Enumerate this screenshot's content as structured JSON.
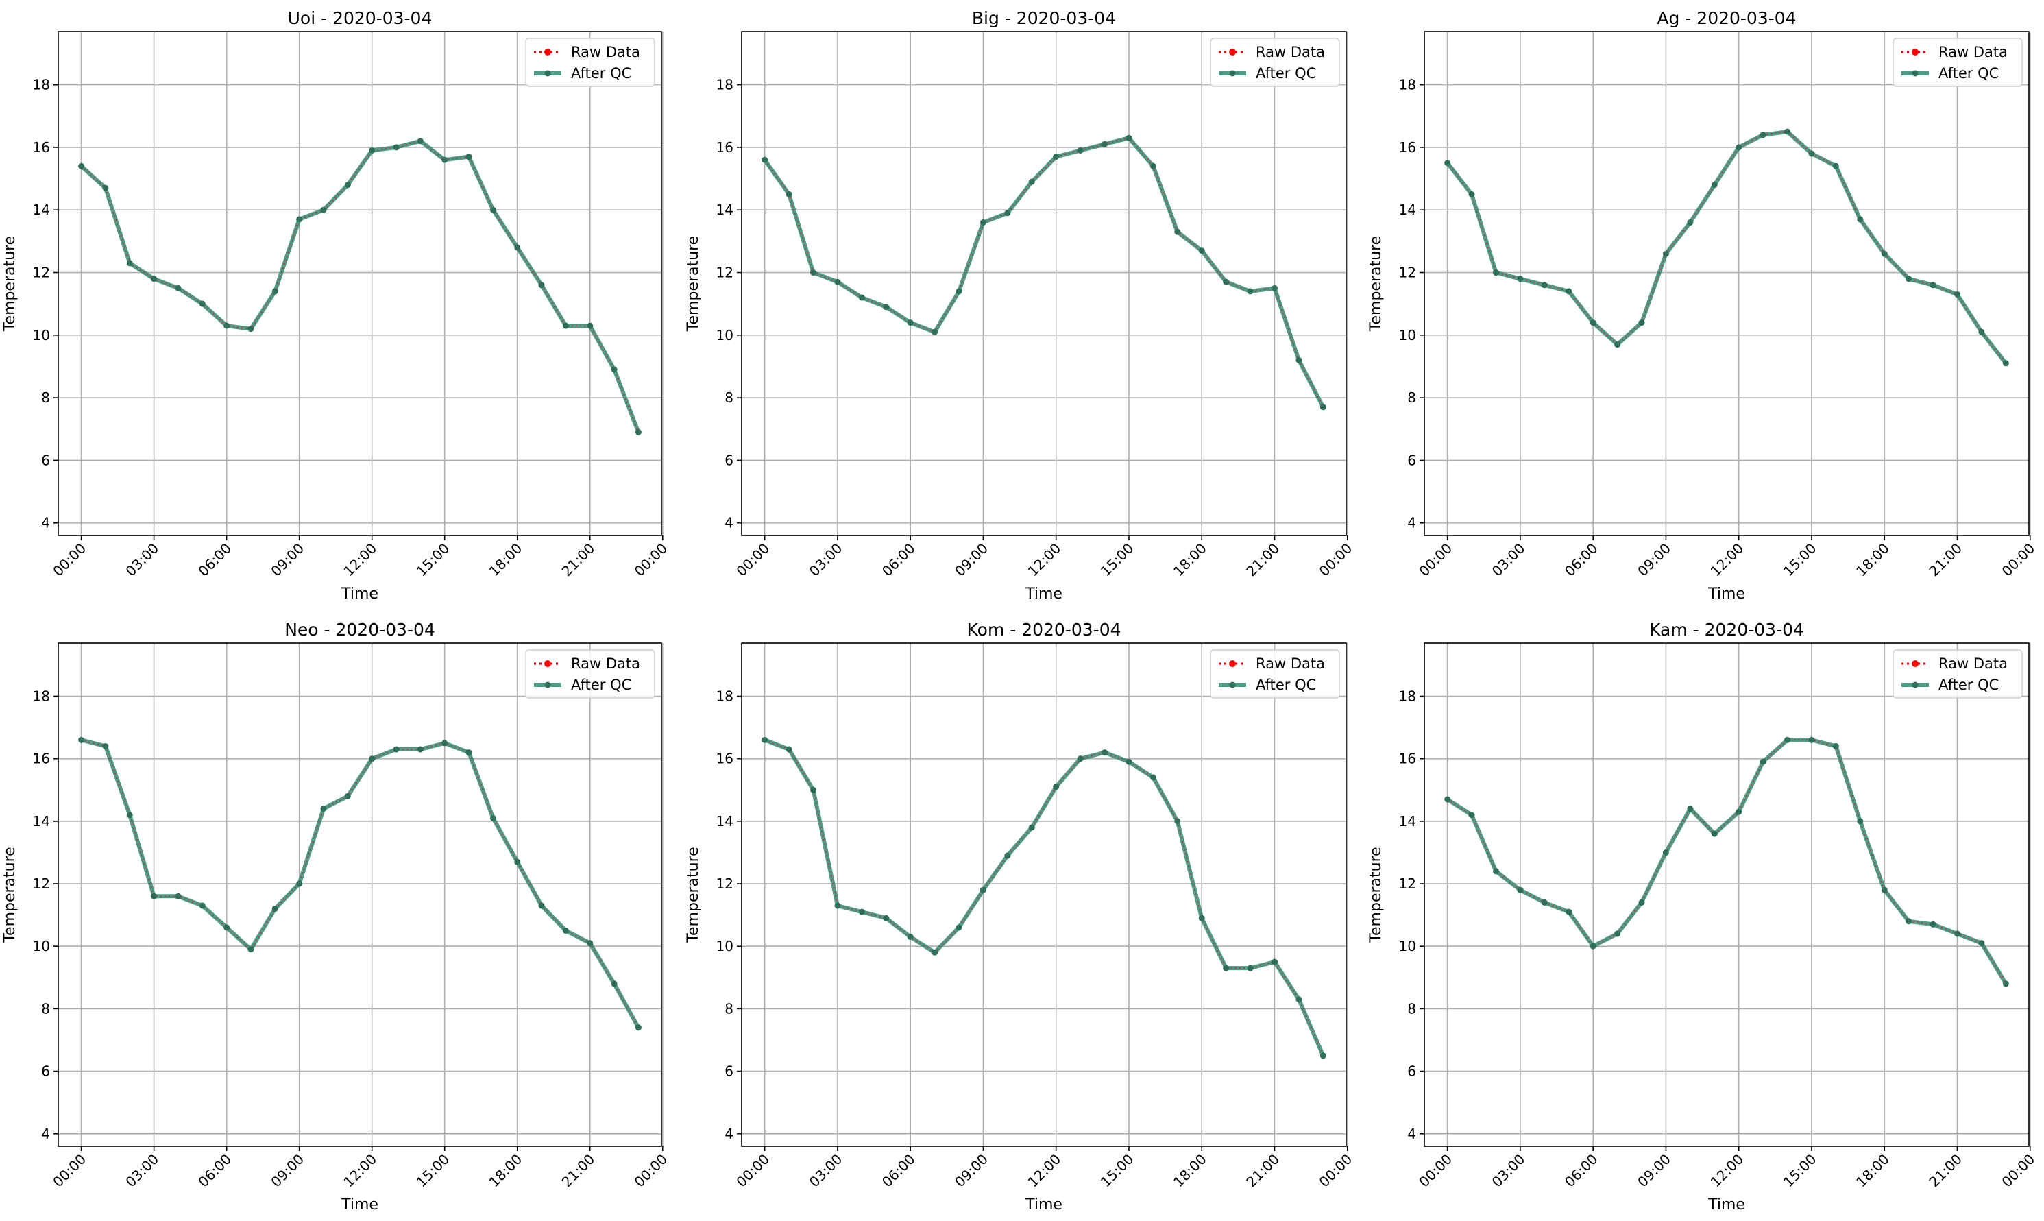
{
  "figure": {
    "background": "#ffffff"
  },
  "style": {
    "raw_color": "#ff0000",
    "qc_color": "#2e8b72",
    "qc_marker_color": "#2f6f5a",
    "grid_color": "#b0b0b0"
  },
  "legend": {
    "placement": "top-right",
    "entries": [
      "Raw Data",
      "After QC"
    ]
  },
  "chart_data": [
    {
      "type": "line",
      "title": "Uoi - 2020-03-04",
      "xlabel": "Time",
      "ylabel": "Temperature",
      "ylim": [
        3.6,
        19.7
      ],
      "yticks": [
        4,
        6,
        8,
        10,
        12,
        14,
        16,
        18
      ],
      "xlim": [
        -0.95,
        23.95
      ],
      "xticks": [
        0,
        3,
        6,
        9,
        12,
        15,
        18,
        21,
        24
      ],
      "xticklabels": [
        "00:00",
        "03:00",
        "06:00",
        "09:00",
        "12:00",
        "15:00",
        "18:00",
        "21:00",
        "00:00"
      ],
      "grid": true,
      "x": [
        0,
        1,
        2,
        3,
        4,
        5,
        6,
        7,
        8,
        9,
        10,
        11,
        12,
        13,
        14,
        15,
        16,
        17,
        18,
        19,
        20,
        21,
        22,
        23
      ],
      "series": [
        {
          "name": "Raw Data",
          "values": [
            15.4,
            14.7,
            12.3,
            11.8,
            11.5,
            11.0,
            10.3,
            10.2,
            11.4,
            13.7,
            14.0,
            14.8,
            15.9,
            16.0,
            16.2,
            15.6,
            15.7,
            14.0,
            12.8,
            11.6,
            10.3,
            10.3,
            8.9,
            6.9
          ]
        },
        {
          "name": "After QC",
          "values": [
            15.4,
            14.7,
            12.3,
            11.8,
            11.5,
            11.0,
            10.3,
            10.2,
            11.4,
            13.7,
            14.0,
            14.8,
            15.9,
            16.0,
            16.2,
            15.6,
            15.7,
            14.0,
            12.8,
            11.6,
            10.3,
            10.3,
            8.9,
            6.9
          ]
        }
      ]
    },
    {
      "type": "line",
      "title": "Big - 2020-03-04",
      "xlabel": "Time",
      "ylabel": "Temperature",
      "ylim": [
        3.6,
        19.7
      ],
      "yticks": [
        4,
        6,
        8,
        10,
        12,
        14,
        16,
        18
      ],
      "xlim": [
        -0.95,
        23.95
      ],
      "xticks": [
        0,
        3,
        6,
        9,
        12,
        15,
        18,
        21,
        24
      ],
      "xticklabels": [
        "00:00",
        "03:00",
        "06:00",
        "09:00",
        "12:00",
        "15:00",
        "18:00",
        "21:00",
        "00:00"
      ],
      "grid": true,
      "x": [
        0,
        1,
        2,
        3,
        4,
        5,
        6,
        7,
        8,
        9,
        10,
        11,
        12,
        13,
        14,
        15,
        16,
        17,
        18,
        19,
        20,
        21,
        22,
        23
      ],
      "series": [
        {
          "name": "Raw Data",
          "values": [
            15.6,
            14.5,
            12.0,
            11.7,
            11.2,
            10.9,
            10.4,
            10.1,
            11.4,
            13.6,
            13.9,
            14.9,
            15.7,
            15.9,
            16.1,
            16.3,
            15.4,
            13.3,
            12.7,
            11.7,
            11.4,
            11.5,
            9.2,
            7.7
          ]
        },
        {
          "name": "After QC",
          "values": [
            15.6,
            14.5,
            12.0,
            11.7,
            11.2,
            10.9,
            10.4,
            10.1,
            11.4,
            13.6,
            13.9,
            14.9,
            15.7,
            15.9,
            16.1,
            16.3,
            15.4,
            13.3,
            12.7,
            11.7,
            11.4,
            11.5,
            9.2,
            7.7
          ]
        }
      ]
    },
    {
      "type": "line",
      "title": "Ag - 2020-03-04",
      "xlabel": "Time",
      "ylabel": "Temperature",
      "ylim": [
        3.6,
        19.7
      ],
      "yticks": [
        4,
        6,
        8,
        10,
        12,
        14,
        16,
        18
      ],
      "xlim": [
        -0.95,
        23.95
      ],
      "xticks": [
        0,
        3,
        6,
        9,
        12,
        15,
        18,
        21,
        24
      ],
      "xticklabels": [
        "00:00",
        "03:00",
        "06:00",
        "09:00",
        "12:00",
        "15:00",
        "18:00",
        "21:00",
        "00:00"
      ],
      "grid": true,
      "x": [
        0,
        1,
        2,
        3,
        4,
        5,
        6,
        7,
        8,
        9,
        10,
        11,
        12,
        13,
        14,
        15,
        16,
        17,
        18,
        19,
        20,
        21,
        22,
        23
      ],
      "series": [
        {
          "name": "Raw Data",
          "values": [
            15.5,
            14.5,
            12.0,
            11.8,
            11.6,
            11.4,
            10.4,
            9.7,
            10.4,
            12.6,
            13.6,
            14.8,
            16.0,
            16.4,
            16.5,
            15.8,
            15.4,
            13.7,
            12.6,
            11.8,
            11.6,
            11.3,
            10.1,
            9.1
          ]
        },
        {
          "name": "After QC",
          "values": [
            15.5,
            14.5,
            12.0,
            11.8,
            11.6,
            11.4,
            10.4,
            9.7,
            10.4,
            12.6,
            13.6,
            14.8,
            16.0,
            16.4,
            16.5,
            15.8,
            15.4,
            13.7,
            12.6,
            11.8,
            11.6,
            11.3,
            10.1,
            9.1
          ]
        }
      ]
    },
    {
      "type": "line",
      "title": "Neo - 2020-03-04",
      "xlabel": "Time",
      "ylabel": "Temperature",
      "ylim": [
        3.6,
        19.7
      ],
      "yticks": [
        4,
        6,
        8,
        10,
        12,
        14,
        16,
        18
      ],
      "xlim": [
        -0.95,
        23.95
      ],
      "xticks": [
        0,
        3,
        6,
        9,
        12,
        15,
        18,
        21,
        24
      ],
      "xticklabels": [
        "00:00",
        "03:00",
        "06:00",
        "09:00",
        "12:00",
        "15:00",
        "18:00",
        "21:00",
        "00:00"
      ],
      "grid": true,
      "x": [
        0,
        1,
        2,
        3,
        4,
        5,
        6,
        7,
        8,
        9,
        10,
        11,
        12,
        13,
        14,
        15,
        16,
        17,
        18,
        19,
        20,
        21,
        22,
        23
      ],
      "series": [
        {
          "name": "Raw Data",
          "values": [
            16.6,
            16.4,
            14.2,
            11.6,
            11.6,
            11.3,
            10.6,
            9.9,
            11.2,
            12.0,
            14.4,
            14.8,
            16.0,
            16.3,
            16.3,
            16.5,
            16.2,
            14.1,
            12.7,
            11.3,
            10.5,
            10.1,
            8.8,
            7.4
          ]
        },
        {
          "name": "After QC",
          "values": [
            16.6,
            16.4,
            14.2,
            11.6,
            11.6,
            11.3,
            10.6,
            9.9,
            11.2,
            12.0,
            14.4,
            14.8,
            16.0,
            16.3,
            16.3,
            16.5,
            16.2,
            14.1,
            12.7,
            11.3,
            10.5,
            10.1,
            8.8,
            7.4
          ]
        }
      ]
    },
    {
      "type": "line",
      "title": "Kom - 2020-03-04",
      "xlabel": "Time",
      "ylabel": "Temperature",
      "ylim": [
        3.6,
        19.7
      ],
      "yticks": [
        4,
        6,
        8,
        10,
        12,
        14,
        16,
        18
      ],
      "xlim": [
        -0.95,
        23.95
      ],
      "xticks": [
        0,
        3,
        6,
        9,
        12,
        15,
        18,
        21,
        24
      ],
      "xticklabels": [
        "00:00",
        "03:00",
        "06:00",
        "09:00",
        "12:00",
        "15:00",
        "18:00",
        "21:00",
        "00:00"
      ],
      "grid": true,
      "x": [
        0,
        1,
        2,
        3,
        4,
        5,
        6,
        7,
        8,
        9,
        10,
        11,
        12,
        13,
        14,
        15,
        16,
        17,
        18,
        19,
        20,
        21,
        22,
        23
      ],
      "series": [
        {
          "name": "Raw Data",
          "values": [
            16.6,
            16.3,
            15.0,
            11.3,
            11.1,
            10.9,
            10.3,
            9.8,
            10.6,
            11.8,
            12.9,
            13.8,
            15.1,
            16.0,
            16.2,
            15.9,
            15.4,
            14.0,
            10.9,
            9.3,
            9.3,
            9.5,
            8.3,
            6.5
          ]
        },
        {
          "name": "After QC",
          "values": [
            16.6,
            16.3,
            15.0,
            11.3,
            11.1,
            10.9,
            10.3,
            9.8,
            10.6,
            11.8,
            12.9,
            13.8,
            15.1,
            16.0,
            16.2,
            15.9,
            15.4,
            14.0,
            10.9,
            9.3,
            9.3,
            9.5,
            8.3,
            6.5
          ]
        }
      ]
    },
    {
      "type": "line",
      "title": "Kam - 2020-03-04",
      "xlabel": "Time",
      "ylabel": "Temperature",
      "ylim": [
        3.6,
        19.7
      ],
      "yticks": [
        4,
        6,
        8,
        10,
        12,
        14,
        16,
        18
      ],
      "xlim": [
        -0.95,
        23.95
      ],
      "xticks": [
        0,
        3,
        6,
        9,
        12,
        15,
        18,
        21,
        24
      ],
      "xticklabels": [
        "00:00",
        "03:00",
        "06:00",
        "09:00",
        "12:00",
        "15:00",
        "18:00",
        "21:00",
        "00:00"
      ],
      "grid": true,
      "x": [
        0,
        1,
        2,
        3,
        4,
        5,
        6,
        7,
        8,
        9,
        10,
        11,
        12,
        13,
        14,
        15,
        16,
        17,
        18,
        19,
        20,
        21,
        22,
        23
      ],
      "series": [
        {
          "name": "Raw Data",
          "values": [
            14.7,
            14.2,
            12.4,
            11.8,
            11.4,
            11.1,
            10.0,
            10.4,
            11.4,
            13.0,
            14.4,
            13.6,
            14.3,
            15.9,
            16.6,
            16.6,
            16.4,
            14.0,
            11.8,
            10.8,
            10.7,
            10.4,
            10.1,
            8.8
          ]
        },
        {
          "name": "After QC",
          "values": [
            14.7,
            14.2,
            12.4,
            11.8,
            11.4,
            11.1,
            10.0,
            10.4,
            11.4,
            13.0,
            14.4,
            13.6,
            14.3,
            15.9,
            16.6,
            16.6,
            16.4,
            14.0,
            11.8,
            10.8,
            10.7,
            10.4,
            10.1,
            8.8
          ]
        }
      ]
    }
  ]
}
